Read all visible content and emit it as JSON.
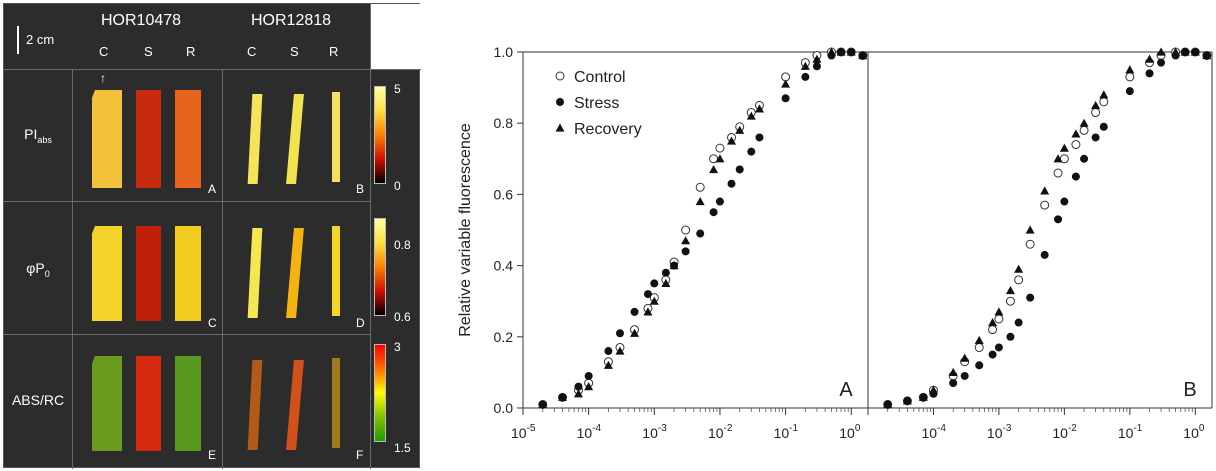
{
  "imaging": {
    "scale_label": "2 cm",
    "genotypes": [
      "HOR10478",
      "HOR12818"
    ],
    "conditions": [
      "C",
      "S",
      "R"
    ],
    "rows": [
      {
        "label_main": "PI",
        "label_sub": "abs",
        "cbar_max": "5",
        "cbar_min": "0",
        "panels": [
          "A",
          "B"
        ],
        "cbar_colors": [
          "#ffffa0",
          "#ffe040",
          "#ff8000",
          "#d01000",
          "#000000"
        ]
      },
      {
        "label_main": "φP",
        "label_sub": "0",
        "cbar_max": "0.8",
        "cbar_min": "0.6",
        "panels": [
          "C",
          "D"
        ],
        "cbar_colors": [
          "#ffffa0",
          "#ffe040",
          "#ff8000",
          "#d01000",
          "#000000"
        ]
      },
      {
        "label_main": "ABS/RC",
        "label_sub": "",
        "cbar_max": "3",
        "cbar_min": "1.5",
        "panels": [
          "E",
          "F"
        ],
        "cbar_colors": [
          "#ff0000",
          "#ff7000",
          "#ffff00",
          "#80c000",
          "#20a000"
        ]
      }
    ],
    "leaf_colors": [
      [
        "#f3c23a",
        "#c82a0e",
        "#e8631c",
        "#f7e35a",
        "#f3e250",
        "#f7e060"
      ],
      [
        "#f5d32a",
        "#c0200a",
        "#f4cc20",
        "#f5e750",
        "#f3b410",
        "#f5d624"
      ],
      [
        "#6a9a1e",
        "#d62a10",
        "#5a9820",
        "#b45a18",
        "#d2501a",
        "#a07a1a"
      ]
    ]
  },
  "chart_data": [
    {
      "type": "scatter",
      "panel_label": "A",
      "xscale": "log",
      "xlim": [
        1e-05,
        1.8
      ],
      "ylim": [
        0,
        1.0
      ],
      "xtick_labels": [
        {
          "base": "10",
          "exp": "-5"
        },
        {
          "base": "10",
          "exp": "-4"
        },
        {
          "base": "10",
          "exp": "-3"
        },
        {
          "base": "10",
          "exp": "-2"
        },
        {
          "base": "10",
          "exp": "-1"
        },
        {
          "base": "10",
          "exp": "0"
        }
      ],
      "ytick_labels": [
        "0.0",
        "0.2",
        "0.4",
        "0.6",
        "0.8",
        "1.0"
      ],
      "ylabel": "Relative variable fluorescence",
      "series": [
        {
          "name": "Control",
          "marker": "open-circle",
          "x": [
            2e-05,
            4e-05,
            7e-05,
            0.0001,
            0.0002,
            0.0003,
            0.0005,
            0.0008,
            0.001,
            0.0015,
            0.002,
            0.003,
            0.005,
            0.008,
            0.01,
            0.015,
            0.02,
            0.03,
            0.04,
            0.1,
            0.2,
            0.3,
            0.5,
            0.7,
            1.0,
            1.5
          ],
          "y": [
            0.01,
            0.03,
            0.05,
            0.07,
            0.13,
            0.17,
            0.22,
            0.28,
            0.31,
            0.36,
            0.41,
            0.5,
            0.62,
            0.7,
            0.73,
            0.76,
            0.79,
            0.83,
            0.85,
            0.93,
            0.97,
            0.99,
            1.0,
            1.0,
            1.0,
            0.99
          ]
        },
        {
          "name": "Stress",
          "marker": "filled-circle",
          "x": [
            2e-05,
            4e-05,
            7e-05,
            0.0001,
            0.0002,
            0.0003,
            0.0005,
            0.0008,
            0.001,
            0.0015,
            0.002,
            0.003,
            0.005,
            0.008,
            0.01,
            0.015,
            0.02,
            0.03,
            0.04,
            0.1,
            0.2,
            0.3,
            0.5,
            0.7,
            1.0,
            1.5
          ],
          "y": [
            0.01,
            0.03,
            0.06,
            0.09,
            0.16,
            0.21,
            0.27,
            0.32,
            0.35,
            0.38,
            0.4,
            0.44,
            0.49,
            0.55,
            0.58,
            0.63,
            0.67,
            0.72,
            0.76,
            0.87,
            0.93,
            0.96,
            0.99,
            1.0,
            1.0,
            0.99
          ]
        },
        {
          "name": "Recovery",
          "marker": "filled-triangle",
          "x": [
            2e-05,
            4e-05,
            7e-05,
            0.0001,
            0.0002,
            0.0003,
            0.0005,
            0.0008,
            0.001,
            0.0015,
            0.002,
            0.003,
            0.005,
            0.008,
            0.01,
            0.015,
            0.02,
            0.03,
            0.04,
            0.1,
            0.2,
            0.3,
            0.5,
            0.7,
            1.0,
            1.5
          ],
          "y": [
            0.01,
            0.03,
            0.04,
            0.06,
            0.12,
            0.16,
            0.21,
            0.27,
            0.3,
            0.35,
            0.4,
            0.47,
            0.58,
            0.67,
            0.7,
            0.75,
            0.78,
            0.82,
            0.84,
            0.91,
            0.96,
            0.98,
            1.0,
            1.0,
            1.0,
            0.99
          ]
        }
      ]
    },
    {
      "type": "scatter",
      "panel_label": "B",
      "xscale": "log",
      "xlim": [
        1e-05,
        1.8
      ],
      "ylim": [
        0,
        1.0
      ],
      "xtick_labels": [
        {
          "base": "10",
          "exp": "-4"
        },
        {
          "base": "10",
          "exp": "-3"
        },
        {
          "base": "10",
          "exp": "-2"
        },
        {
          "base": "10",
          "exp": "-1"
        },
        {
          "base": "10",
          "exp": "0"
        }
      ],
      "series": [
        {
          "name": "Control",
          "marker": "open-circle",
          "x": [
            2e-05,
            4e-05,
            7e-05,
            0.0001,
            0.0002,
            0.0003,
            0.0005,
            0.0008,
            0.001,
            0.0015,
            0.002,
            0.003,
            0.005,
            0.008,
            0.01,
            0.015,
            0.02,
            0.03,
            0.04,
            0.1,
            0.2,
            0.3,
            0.5,
            0.7,
            1.0,
            1.5
          ],
          "y": [
            0.01,
            0.02,
            0.03,
            0.05,
            0.09,
            0.13,
            0.17,
            0.22,
            0.25,
            0.3,
            0.36,
            0.46,
            0.57,
            0.66,
            0.7,
            0.74,
            0.78,
            0.83,
            0.86,
            0.93,
            0.97,
            0.99,
            1.0,
            1.0,
            1.0,
            0.99
          ]
        },
        {
          "name": "Stress",
          "marker": "filled-circle",
          "x": [
            2e-05,
            4e-05,
            7e-05,
            0.0001,
            0.0002,
            0.0003,
            0.0005,
            0.0008,
            0.001,
            0.0015,
            0.002,
            0.003,
            0.005,
            0.008,
            0.01,
            0.015,
            0.02,
            0.03,
            0.04,
            0.1,
            0.2,
            0.3,
            0.5,
            0.7,
            1.0,
            1.5
          ],
          "y": [
            0.01,
            0.02,
            0.03,
            0.04,
            0.07,
            0.09,
            0.12,
            0.15,
            0.17,
            0.2,
            0.24,
            0.31,
            0.43,
            0.53,
            0.58,
            0.65,
            0.7,
            0.76,
            0.79,
            0.89,
            0.94,
            0.97,
            0.99,
            1.0,
            1.0,
            0.99
          ]
        },
        {
          "name": "Recovery",
          "marker": "filled-triangle",
          "x": [
            2e-05,
            4e-05,
            7e-05,
            0.0001,
            0.0002,
            0.0003,
            0.0005,
            0.0008,
            0.001,
            0.0015,
            0.002,
            0.003,
            0.005,
            0.008,
            0.01,
            0.015,
            0.02,
            0.03,
            0.04,
            0.1,
            0.2,
            0.3,
            0.5,
            0.7,
            1.0,
            1.5
          ],
          "y": [
            0.01,
            0.02,
            0.03,
            0.05,
            0.1,
            0.14,
            0.19,
            0.24,
            0.27,
            0.33,
            0.39,
            0.5,
            0.61,
            0.7,
            0.73,
            0.77,
            0.8,
            0.85,
            0.88,
            0.95,
            0.98,
            1.0,
            1.0,
            1.0,
            1.0,
            0.99
          ]
        }
      ]
    }
  ]
}
